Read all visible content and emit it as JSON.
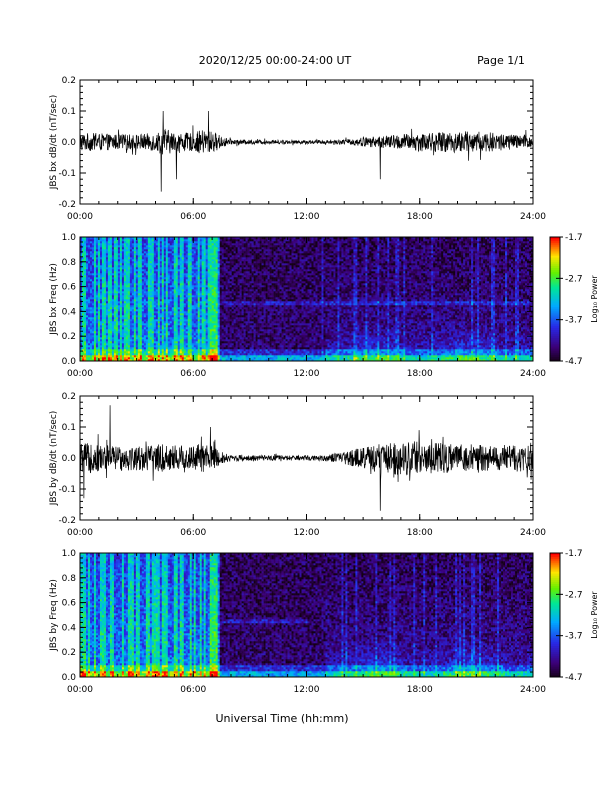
{
  "header": {
    "title": "2020/12/25  00:00-24:00 UT",
    "page": "Page 1/1"
  },
  "footer": {
    "xlabel": "Universal Time (hh:mm)"
  },
  "chart_data": [
    {
      "type": "line",
      "ylabel": "JBS bx dB/dt (nT/sec)",
      "x_range": [
        "00:00",
        "24:00"
      ],
      "xticks": [
        "00:00",
        "06:00",
        "12:00",
        "18:00",
        "24:00"
      ],
      "yticks": [
        "-0.2",
        "-0.1",
        "0.0",
        "0.1",
        "0.2"
      ],
      "ylim": [
        -0.2,
        0.2
      ],
      "envelope": {
        "hours": [
          0,
          1,
          2,
          3,
          4,
          4.5,
          5,
          6,
          6.5,
          7,
          7.5,
          8,
          10,
          12,
          13,
          14,
          15,
          16,
          17,
          18,
          19,
          20,
          21,
          22,
          23,
          24
        ],
        "amplitude": [
          0.03,
          0.028,
          0.025,
          0.025,
          0.03,
          0.045,
          0.03,
          0.03,
          0.04,
          0.035,
          0.02,
          0.008,
          0.006,
          0.006,
          0.006,
          0.008,
          0.015,
          0.02,
          0.025,
          0.03,
          0.032,
          0.035,
          0.035,
          0.03,
          0.025,
          0.022
        ]
      },
      "spikes": [
        {
          "hour": 4.3,
          "value": -0.16
        },
        {
          "hour": 4.4,
          "value": 0.1
        },
        {
          "hour": 5.1,
          "value": -0.12
        },
        {
          "hour": 6.8,
          "value": 0.1
        },
        {
          "hour": 15.9,
          "value": -0.12
        }
      ]
    },
    {
      "type": "heatmap",
      "ylabel": "JBS bx Freq (Hz)",
      "x_range": [
        "00:00",
        "24:00"
      ],
      "xticks": [
        "00:00",
        "06:00",
        "12:00",
        "18:00",
        "24:00"
      ],
      "yticks": [
        "0.0",
        "0.2",
        "0.4",
        "0.6",
        "0.8",
        "1.0"
      ],
      "ylim": [
        0.0,
        1.0
      ],
      "colorbar": {
        "label": "Log₁₀ Power",
        "ticks": [
          "-1.7",
          "-2.7",
          "-3.7",
          "-4.7"
        ],
        "range": [
          -4.7,
          -1.7
        ]
      },
      "band": {
        "freq": 0.47,
        "from_hour": 7.5,
        "to_hour": 24
      },
      "quiet_interval_hours": [
        7.3,
        24
      ],
      "active_interval_hours": [
        0,
        7.3
      ]
    },
    {
      "type": "line",
      "ylabel": "JBS by dB/dt (nT/sec)",
      "x_range": [
        "00:00",
        "24:00"
      ],
      "xticks": [
        "00:00",
        "06:00",
        "12:00",
        "18:00",
        "24:00"
      ],
      "yticks": [
        "-0.2",
        "-0.1",
        "0.0",
        "0.1",
        "0.2"
      ],
      "ylim": [
        -0.2,
        0.2
      ],
      "envelope": {
        "hours": [
          0,
          1,
          2,
          3,
          4,
          5,
          6,
          6.5,
          7,
          7.5,
          8,
          10,
          12,
          13,
          14,
          15,
          16,
          17,
          18,
          19,
          20,
          21,
          22,
          23,
          24
        ],
        "amplitude": [
          0.05,
          0.045,
          0.04,
          0.04,
          0.045,
          0.045,
          0.04,
          0.05,
          0.04,
          0.02,
          0.01,
          0.008,
          0.008,
          0.01,
          0.02,
          0.035,
          0.05,
          0.055,
          0.055,
          0.05,
          0.045,
          0.045,
          0.04,
          0.045,
          0.04
        ]
      },
      "spikes": [
        {
          "hour": 1.6,
          "value": 0.17
        },
        {
          "hour": 6.9,
          "value": 0.1
        },
        {
          "hour": 15.9,
          "value": -0.17
        },
        {
          "hour": 0.2,
          "value": -0.13
        }
      ]
    },
    {
      "type": "heatmap",
      "ylabel": "JBS by Freq (Hz)",
      "x_range": [
        "00:00",
        "24:00"
      ],
      "xticks": [
        "00:00",
        "06:00",
        "12:00",
        "18:00",
        "24:00"
      ],
      "yticks": [
        "0.0",
        "0.2",
        "0.4",
        "0.6",
        "0.8",
        "1.0"
      ],
      "ylim": [
        0.0,
        1.0
      ],
      "colorbar": {
        "label": "Log₁₀ Power",
        "ticks": [
          "-1.7",
          "-2.7",
          "-3.7",
          "-4.7"
        ],
        "range": [
          -4.7,
          -1.7
        ]
      },
      "band": {
        "freq": 0.45,
        "from_hour": 7.5,
        "to_hour": 12
      },
      "quiet_interval_hours": [
        7.3,
        24
      ],
      "active_interval_hours": [
        0,
        7.3
      ]
    }
  ]
}
